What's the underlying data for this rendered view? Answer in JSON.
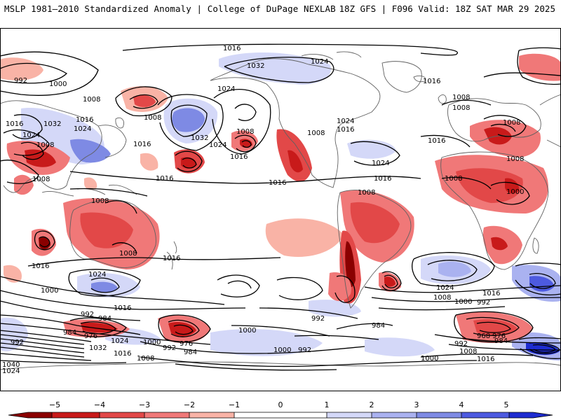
{
  "header": {
    "left": "MSLP 1981–2010 Standardized Anomaly | College of DuPage NEXLAB",
    "right": "18Z GFS | F096 Valid: 18Z SAT MAR 29 2025"
  },
  "colors": {
    "neg5": "#8a0000",
    "neg4": "#c81a1a",
    "neg3": "#e24848",
    "neg2": "#f07878",
    "neg1": "#f9b3a6",
    "zero": "#ffffff",
    "pos1": "#d4d8f8",
    "pos2": "#aab2f0",
    "pos3": "#7e8ae4",
    "pos4": "#4d5ae0",
    "pos5": "#1e2cd0"
  },
  "colorbar": {
    "ticks": [
      "−5",
      "−4",
      "−3",
      "−2",
      "−1",
      "0",
      "1",
      "2",
      "3",
      "4",
      "5"
    ]
  },
  "isobar_labels": [
    "1016",
    "1032",
    "1024",
    "992",
    "1000",
    "1016",
    "1008",
    "1008",
    "1008",
    "1016",
    "1032",
    "1016",
    "1024",
    "1024",
    "1008",
    "1008",
    "1032",
    "1024",
    "1016",
    "1008",
    "1008",
    "1016",
    "1024",
    "1024",
    "1016",
    "1016",
    "1008",
    "1016",
    "1008",
    "1008",
    "1008",
    "1016",
    "1016",
    "1008",
    "1000",
    "1016",
    "1000",
    "1024",
    "1024",
    "1008",
    "1016",
    "1008",
    "1000",
    "992",
    "992",
    "1000",
    "992",
    "984",
    "984",
    "976",
    "1024",
    "1032",
    "992",
    "1016",
    "1000",
    "992",
    "976",
    "984",
    "1016",
    "1008",
    "992",
    "1000",
    "1024",
    "1008",
    "1016",
    "1000",
    "992",
    "1008",
    "1016",
    "984",
    "968",
    "976",
    "984",
    "1040",
    "1024"
  ]
}
